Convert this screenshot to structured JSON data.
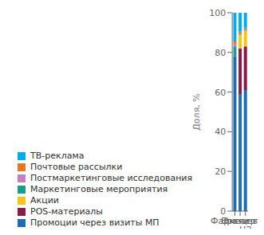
{
  "chart_data": {
    "type": "bar",
    "stacked": true,
    "categories": [
      "Врачи",
      "Фармацевты",
      "Эксперты ЦЗ"
    ],
    "series": [
      {
        "name": "Промоции через визиты МП",
        "color": "#1B6DB5",
        "values": [
          78,
          59,
          61
        ]
      },
      {
        "name": "POS-материалы",
        "color": "#8B1A4A",
        "values": [
          0,
          23,
          22
        ]
      },
      {
        "name": "Акции",
        "color": "#F5C518",
        "values": [
          0,
          7,
          8
        ]
      },
      {
        "name": "Маркетинговые мероприятия",
        "color": "#1A9E8C",
        "values": [
          5,
          0.5,
          0.5
        ]
      },
      {
        "name": "Постмаркетинговые исследования",
        "color": "#C47EC4",
        "values": [
          1,
          0.5,
          0.5
        ]
      },
      {
        "name": "Почтовые рассылки",
        "color": "#E87722",
        "values": [
          1.5,
          0.5,
          0.5
        ]
      },
      {
        "name": "ТВ-реклама",
        "color": "#00AEEF",
        "values": [
          14.5,
          9.5,
          7.5
        ]
      }
    ],
    "ylabel": "Доля, %",
    "ylim": [
      0,
      100
    ],
    "yticks": [
      0,
      20,
      40,
      60,
      80,
      100
    ],
    "grid": false,
    "legend": "bottom"
  }
}
